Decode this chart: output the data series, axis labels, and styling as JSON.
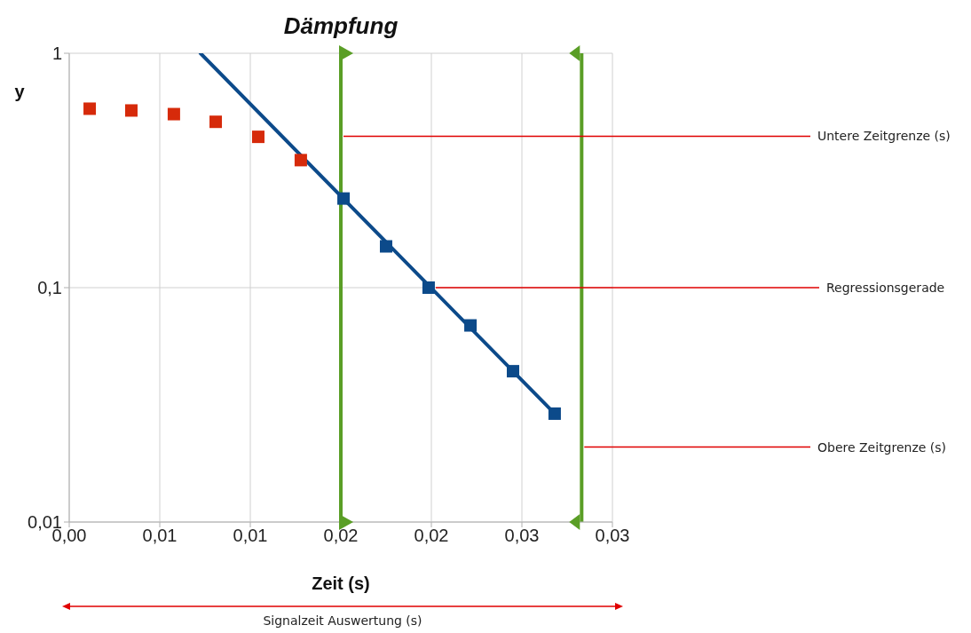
{
  "chart_data": {
    "type": "scatter",
    "title": "Dämpfung",
    "xlabel": "Zeit (s)",
    "ylabel": "y",
    "log": "y",
    "grid": true,
    "legend": false,
    "xlim": [
      0,
      0.03
    ],
    "xticks": [
      {
        "value": 0,
        "label": "0,00"
      },
      {
        "value": 0.005,
        "label": "0,01"
      },
      {
        "value": 0.01,
        "label": "0,01"
      },
      {
        "value": 0.015,
        "label": "0,02"
      },
      {
        "value": 0.02,
        "label": "0,02"
      },
      {
        "value": 0.025,
        "label": "0,03"
      },
      {
        "value": 0.03,
        "label": "0,03"
      }
    ],
    "ylim": [
      0.01,
      1
    ],
    "yticks": [
      {
        "value": 0.01,
        "label": "0,01"
      },
      {
        "value": 0.1,
        "label": "0,1"
      },
      {
        "value": 1,
        "label": "1"
      }
    ],
    "series": [
      {
        "color": "#d62a0a",
        "marker": "square",
        "x": [
          0.00113,
          0.00343,
          0.00578,
          0.00809,
          0.01044,
          0.01279
        ],
        "values": [
          0.58,
          0.57,
          0.55,
          0.51,
          0.44,
          0.35
        ]
      },
      {
        "color": "#0c4a8a",
        "marker": "square",
        "x": [
          0.01515,
          0.0175,
          0.01985,
          0.02216,
          0.02451,
          0.02681
        ],
        "values": [
          0.24,
          0.15,
          0.1,
          0.069,
          0.044,
          0.029
        ]
      },
      {
        "type": "line",
        "color": "#0c4a8a",
        "marker": "none",
        "x": [
          0.00725,
          0.02681
        ],
        "values": [
          1,
          0.029
        ]
      }
    ],
    "ref_lines": [
      {
        "axis": "x",
        "value": 0.015,
        "label": "Untere Zeitgrenze (s)",
        "color": "#5a9e26"
      },
      {
        "axis": "x",
        "value": 0.0283,
        "label": "Obere Zeitgrenze (s)",
        "color": "#5a9e26"
      }
    ],
    "annotations": [
      {
        "text": "Regressionsgerade",
        "x": 0.01985,
        "y": 0.1
      },
      "Signalzeit Auswertung (s)"
    ]
  }
}
